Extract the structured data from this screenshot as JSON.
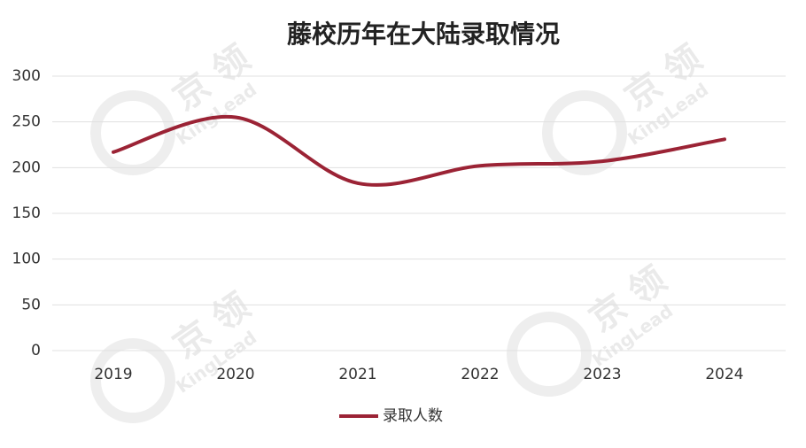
{
  "chart_data": {
    "type": "line",
    "title": "藤校历年在大陆录取情况",
    "categories": [
      "2019",
      "2020",
      "2021",
      "2022",
      "2023",
      "2024"
    ],
    "series": [
      {
        "name": "录取人数",
        "color": "#9b2335",
        "values": [
          217,
          255,
          183,
          202,
          207,
          231
        ]
      }
    ],
    "ylim": [
      0,
      300
    ],
    "yticks": [
      0,
      50,
      100,
      150,
      200,
      250,
      300
    ],
    "grid": true,
    "smooth": true,
    "legend": "bottom",
    "watermark": {
      "brand_cn": "京 领",
      "brand_en": "KingLead"
    }
  }
}
